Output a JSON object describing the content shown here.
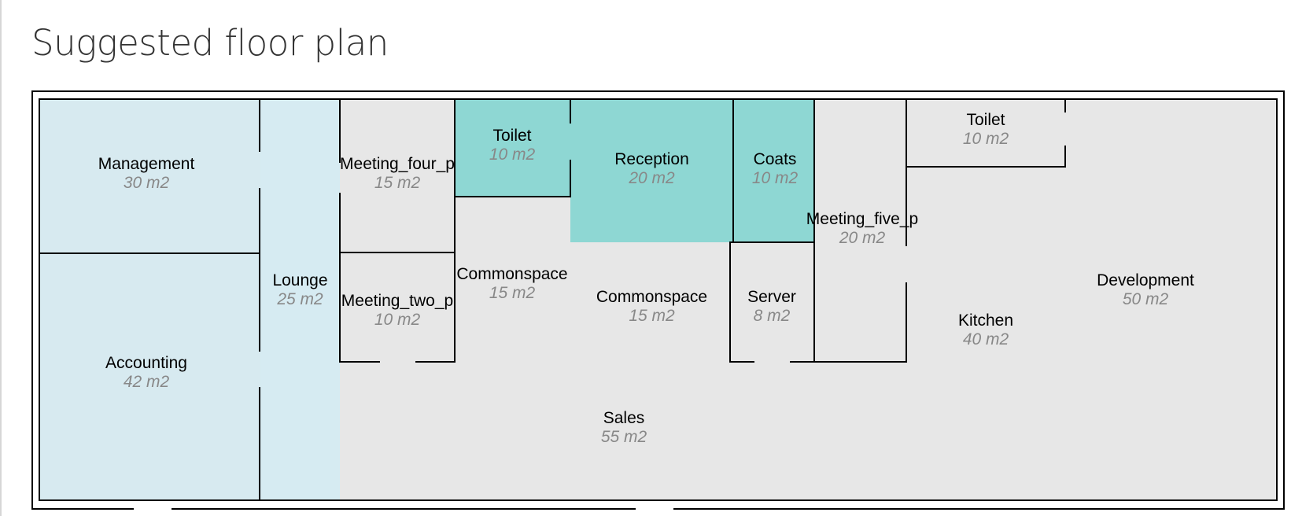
{
  "page": {
    "title": "Suggested floor plan"
  },
  "colors": {
    "light_blue": "#d7eaf0",
    "light_blue_2": "#d6ebf2",
    "teal": "#8ed7d3",
    "grey": "#e7e7e7",
    "wall": "#000000",
    "area_text": "#888888"
  },
  "rooms": {
    "management": {
      "name": "Management",
      "area": "30 m2"
    },
    "accounting": {
      "name": "Accounting",
      "area": "42 m2"
    },
    "lounge": {
      "name": "Lounge",
      "area": "25 m2"
    },
    "meeting_four": {
      "name": "Meeting_four_p",
      "area": "15 m2"
    },
    "meeting_two": {
      "name": "Meeting_two_p",
      "area": "10 m2"
    },
    "toilet_1": {
      "name": "Toilet",
      "area": "10 m2"
    },
    "commonspace_1": {
      "name": "Commonspace",
      "area": "15 m2"
    },
    "reception": {
      "name": "Reception",
      "area": "20 m2"
    },
    "commonspace_2": {
      "name": "Commonspace",
      "area": "15 m2"
    },
    "coats": {
      "name": "Coats",
      "area": "10 m2"
    },
    "server": {
      "name": "Server",
      "area": "8 m2"
    },
    "meeting_five": {
      "name": "Meeting_five_p",
      "area": "20 m2"
    },
    "toilet_2": {
      "name": "Toilet",
      "area": "10 m2"
    },
    "kitchen": {
      "name": "Kitchen",
      "area": "40 m2"
    },
    "development": {
      "name": "Development",
      "area": "50 m2"
    },
    "sales": {
      "name": "Sales",
      "area": "55 m2"
    }
  }
}
